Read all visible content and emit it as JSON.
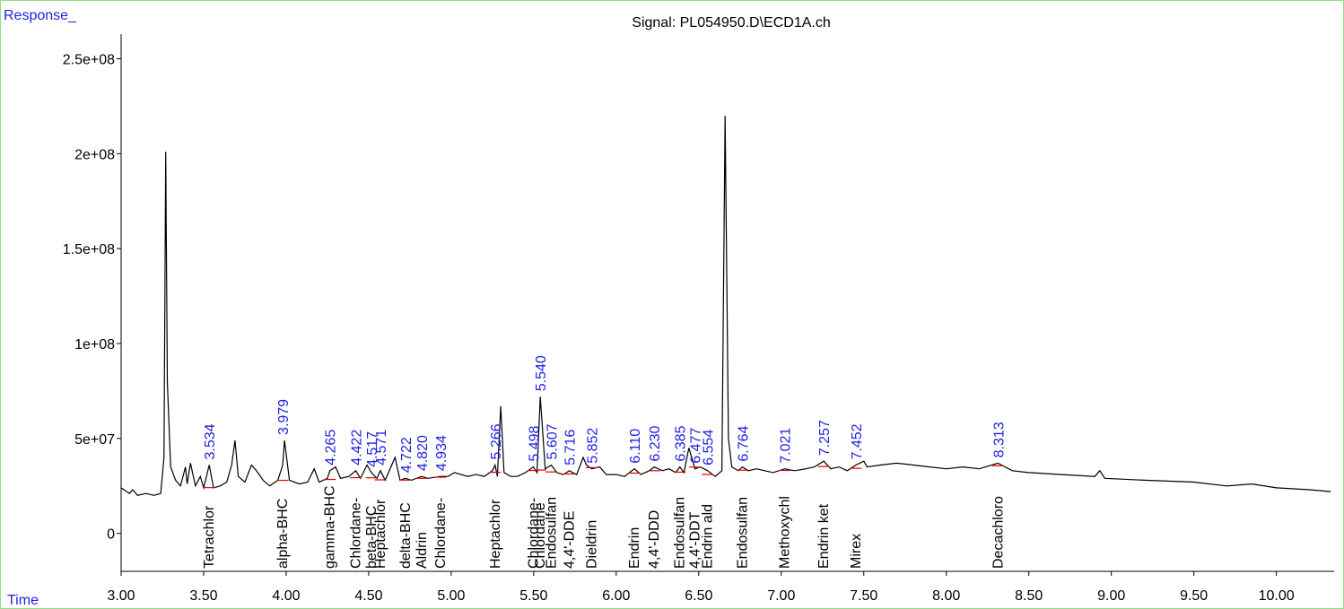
{
  "chart_data": {
    "type": "line",
    "title": "Signal: PL054950.D\\ECD1A.ch",
    "y_label": "Response_",
    "x_label": "Time",
    "xlim": [
      3.0,
      10.35
    ],
    "ylim": [
      -20000000.0,
      263000000.0
    ],
    "xticks": [
      {
        "value": 3,
        "label": "3.00"
      },
      {
        "value": 3.5,
        "label": "3.50"
      },
      {
        "value": 4,
        "label": "4.00"
      },
      {
        "value": 4.5,
        "label": "4.50"
      },
      {
        "value": 5,
        "label": "5.00"
      },
      {
        "value": 5.5,
        "label": "5.50"
      },
      {
        "value": 6,
        "label": "6.00"
      },
      {
        "value": 6.5,
        "label": "6.50"
      },
      {
        "value": 7,
        "label": "7.00"
      },
      {
        "value": 7.5,
        "label": "7.50"
      },
      {
        "value": 8,
        "label": "8.00"
      },
      {
        "value": 8.5,
        "label": "8.50"
      },
      {
        "value": 9,
        "label": "9.00"
      },
      {
        "value": 9.5,
        "label": "9.50"
      },
      {
        "value": 10,
        "label": "10.00"
      }
    ],
    "yticks": [
      0,
      {
        "value": 50000000.0,
        "label": "5e+07"
      },
      {
        "value": 100000000.0,
        "label": "1e+08"
      },
      {
        "value": 150000000.0,
        "label": "1.5e+08"
      },
      {
        "value": 200000000.0,
        "label": "2e+08"
      },
      {
        "value": 250000000.0,
        "label": "2.5e+08"
      }
    ],
    "x": [
      3.0,
      3.05,
      3.07,
      3.1,
      3.15,
      3.2,
      3.24,
      3.26,
      3.27,
      3.28,
      3.3,
      3.33,
      3.36,
      3.39,
      3.4,
      3.42,
      3.45,
      3.48,
      3.5,
      3.534,
      3.56,
      3.6,
      3.64,
      3.67,
      3.69,
      3.71,
      3.75,
      3.79,
      3.82,
      3.86,
      3.9,
      3.95,
      3.979,
      3.99,
      4.02,
      4.08,
      4.13,
      4.17,
      4.2,
      4.25,
      4.265,
      4.3,
      4.33,
      4.38,
      4.422,
      4.45,
      4.49,
      4.517,
      4.55,
      4.571,
      4.6,
      4.66,
      4.69,
      4.722,
      4.76,
      4.82,
      4.86,
      4.934,
      4.98,
      5.02,
      5.06,
      5.1,
      5.15,
      5.2,
      5.25,
      5.266,
      5.28,
      5.3,
      5.32,
      5.36,
      5.4,
      5.45,
      5.498,
      5.52,
      5.54,
      5.57,
      5.607,
      5.64,
      5.68,
      5.716,
      5.76,
      5.8,
      5.82,
      5.852,
      5.9,
      5.94,
      6.0,
      6.05,
      6.11,
      6.15,
      6.2,
      6.23,
      6.28,
      6.32,
      6.36,
      6.385,
      6.41,
      6.44,
      6.477,
      6.51,
      6.554,
      6.6,
      6.64,
      6.66,
      6.68,
      6.7,
      6.74,
      6.764,
      6.8,
      6.85,
      6.9,
      6.95,
      7.021,
      7.08,
      7.15,
      7.2,
      7.257,
      7.3,
      7.35,
      7.4,
      7.452,
      7.5,
      7.52,
      7.6,
      7.7,
      7.8,
      7.9,
      8.0,
      8.1,
      8.2,
      8.313,
      8.4,
      8.5,
      8.7,
      8.9,
      8.93,
      8.96,
      9.2,
      9.5,
      9.7,
      9.85,
      10.0,
      10.2,
      10.33
    ],
    "series": [
      {
        "color": "#000000",
        "values": [
          24000000.0,
          21000000.0,
          23000000.0,
          20000000.0,
          21000000.0,
          20000000.0,
          21000000.0,
          40000000.0,
          201000000.0,
          80000000.0,
          35000000.0,
          28000000.0,
          25000000.0,
          35000000.0,
          26000000.0,
          37000000.0,
          25000000.0,
          30000000.0,
          24000000.0,
          36000000.0,
          24000000.0,
          25000000.0,
          27000000.0,
          36000000.0,
          49000000.0,
          30000000.0,
          27000000.0,
          36000000.0,
          33000000.0,
          28000000.0,
          25000000.0,
          28000000.0,
          36000000.0,
          49000000.0,
          28000000.0,
          26000000.0,
          27000000.0,
          34000000.0,
          27000000.0,
          29000000.0,
          33000000.0,
          35000000.0,
          29000000.0,
          30000000.0,
          33000000.0,
          29000000.0,
          36000000.0,
          32000000.0,
          29000000.0,
          33000000.0,
          28000000.0,
          40000000.0,
          28000000.0,
          29000000.0,
          28000000.0,
          30000000.0,
          29000000.0,
          30000000.0,
          30000000.0,
          32000000.0,
          31000000.0,
          30000000.0,
          31000000.0,
          30000000.0,
          33000000.0,
          36000000.0,
          30000000.0,
          67000000.0,
          32000000.0,
          30000000.0,
          30000000.0,
          32000000.0,
          35000000.0,
          32000000.0,
          72000000.0,
          34000000.0,
          36000000.0,
          32000000.0,
          31000000.0,
          33000000.0,
          31000000.0,
          40000000.0,
          36000000.0,
          34000000.0,
          35000000.0,
          31000000.0,
          31000000.0,
          30000000.0,
          34000000.0,
          31000000.0,
          33000000.0,
          35000000.0,
          33000000.0,
          34000000.0,
          32000000.0,
          35000000.0,
          32000000.0,
          45000000.0,
          34000000.0,
          35000000.0,
          33000000.0,
          30000000.0,
          33000000.0,
          220000000.0,
          50000000.0,
          35000000.0,
          33000000.0,
          35000000.0,
          33000000.0,
          34000000.0,
          33000000.0,
          32000000.0,
          34000000.0,
          33000000.0,
          34000000.0,
          35000000.0,
          38000000.0,
          34000000.0,
          35000000.0,
          33000000.0,
          36000000.0,
          38000000.0,
          35000000.0,
          36000000.0,
          37000000.0,
          36000000.0,
          35000000.0,
          34000000.0,
          35000000.0,
          34000000.0,
          37000000.0,
          33000000.0,
          32000000.0,
          31000000.0,
          30000000.0,
          33000000.0,
          29000000.0,
          28000000.0,
          27000000.0,
          25000000.0,
          26000000.0,
          24000000.0,
          23000000.0,
          22000000.0
        ]
      }
    ],
    "peaks": [
      {
        "value": 3.534,
        "label": "3.534",
        "name": "Tetrachlor"
      },
      {
        "value": 3.979,
        "label": "3.979",
        "name": "alpha-BHC"
      },
      {
        "value": 4.265,
        "label": "4.265",
        "name": "gamma-BHC"
      },
      {
        "value": 4.422,
        "label": "4.422",
        "name": "Chlordane-"
      },
      {
        "value": 4.517,
        "label": "4.517",
        "name": "beta-BHC"
      },
      {
        "value": 4.571,
        "label": "4.571",
        "name": "Heptachlor"
      },
      {
        "value": 4.722,
        "label": "4.722",
        "name": "delta-BHC"
      },
      {
        "value": 4.82,
        "label": "4.820",
        "name": "Aldrin"
      },
      {
        "value": 4.934,
        "label": "4.934",
        "name": "Chlordane-"
      },
      {
        "value": 5.266,
        "label": "5.266",
        "name": "Heptachlor"
      },
      {
        "value": 5.498,
        "label": "5.498",
        "name": "Chlordane-"
      },
      {
        "value": 5.54,
        "label": "5.540",
        "name": "Chlordane"
      },
      {
        "value": 5.607,
        "label": "5.607",
        "name": "Endosulfan"
      },
      {
        "value": 5.716,
        "label": "5.716",
        "name": "4,4'-DDE"
      },
      {
        "value": 5.852,
        "label": "5.852",
        "name": "Dieldrin"
      },
      {
        "value": 6.11,
        "label": "6.110",
        "name": "Endrin"
      },
      {
        "value": 6.23,
        "label": "6.230",
        "name": "4,4'-DDD"
      },
      {
        "value": 6.385,
        "label": "6.385",
        "name": "Endosulfan"
      },
      {
        "value": 6.477,
        "label": "6.477",
        "name": "4,4'-DDT"
      },
      {
        "value": 6.554,
        "label": "6.554",
        "name": "Endrin ald"
      },
      {
        "value": 6.764,
        "label": "6.764",
        "name": "Endosulfan"
      },
      {
        "value": 7.021,
        "label": "7.021",
        "name": "Methoxychl"
      },
      {
        "value": 7.257,
        "label": "7.257",
        "name": "Endrin ket"
      },
      {
        "value": 7.452,
        "label": "7.452",
        "name": "Mirex"
      },
      {
        "value": 8.313,
        "label": "8.313",
        "name": "Decachloro"
      }
    ]
  }
}
